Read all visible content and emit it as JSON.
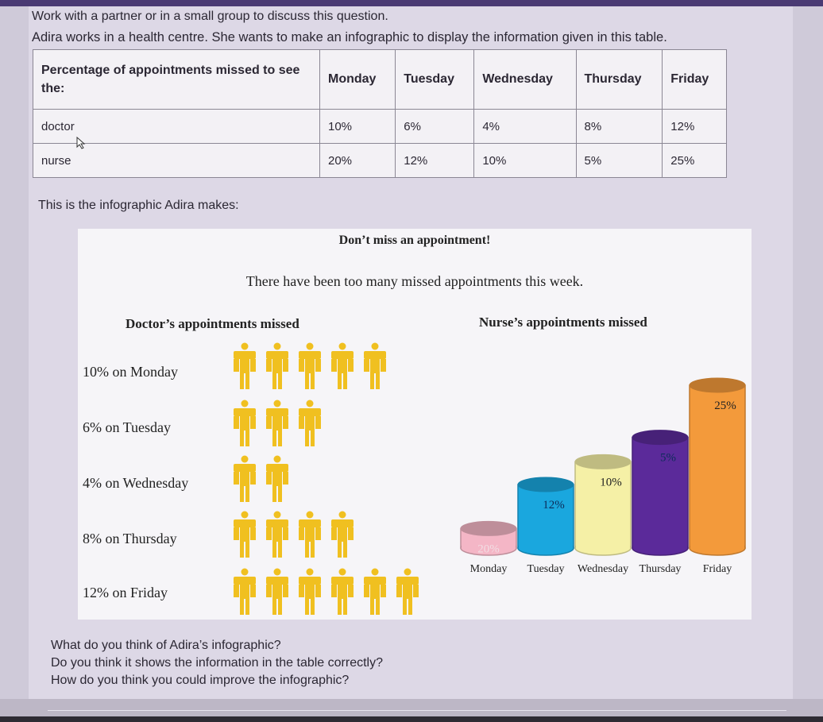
{
  "intro": {
    "line1": "Work with a partner or in a small group to discuss this question.",
    "line2": "Adira works in a health centre. She wants to make an infographic to display the information given in this table."
  },
  "table": {
    "header": [
      "Percentage of appointments missed to see the:",
      "Monday",
      "Tuesday",
      "Wednesday",
      "Thursday",
      "Friday"
    ],
    "rows": [
      [
        "doctor",
        "10%",
        "6%",
        "4%",
        "8%",
        "12%"
      ],
      [
        "nurse",
        "20%",
        "12%",
        "10%",
        "5%",
        "25%"
      ]
    ]
  },
  "infographic_intro": "This is the infographic Adira makes:",
  "infographic": {
    "title": "Don’t miss an appointment!",
    "subtitle": "There have been too many missed appointments this week.",
    "doctor": {
      "heading": "Doctor’s appointments missed",
      "rows": [
        {
          "label": "10% on Monday",
          "people": 5
        },
        {
          "label": "6% on Tuesday",
          "people": 3
        },
        {
          "label": "4% on Wednesday",
          "people": 2
        },
        {
          "label": "8% on Thursday",
          "people": 4
        },
        {
          "label": "12% on Friday",
          "people": 6
        }
      ],
      "icon": "person-icon",
      "icon_color": "#f0c020"
    },
    "nurse": {
      "heading": "Nurse’s appointments missed"
    }
  },
  "chart_data": {
    "type": "bar",
    "title": "Nurse’s appointments missed",
    "categories": [
      "Monday",
      "Tuesday",
      "Wednesday",
      "Thursday",
      "Friday"
    ],
    "series": [
      {
        "values": [
          20,
          12,
          10,
          5,
          25
        ]
      }
    ],
    "data_labels": [
      "20%",
      "12%",
      "10%",
      "5%",
      "25%"
    ],
    "bar_heights_relative": [
      0.12,
      0.39,
      0.53,
      0.68,
      1.0
    ],
    "colors": [
      "#f4b6c6",
      "#1aa7de",
      "#f5f0a6",
      "#5b2a9a",
      "#f39a3b"
    ]
  },
  "questions": [
    "What do you think of Adira’s infographic?",
    "Do you think it shows the information in the table correctly?",
    "How do you think you could improve the infographic?"
  ]
}
